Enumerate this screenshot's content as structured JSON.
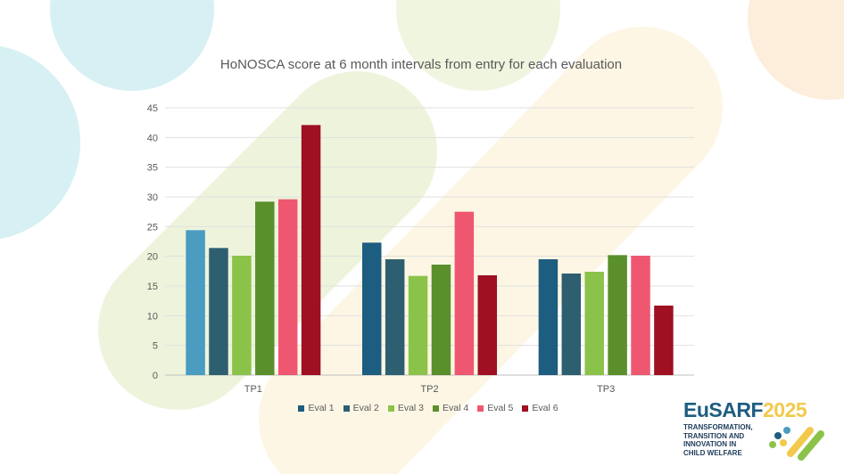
{
  "chart_data": {
    "type": "bar",
    "title": "HoNOSCA score at 6 month intervals from entry for each evaluation",
    "categories": [
      "TP1",
      "TP2",
      "TP3"
    ],
    "series": [
      {
        "name": "Eval 1",
        "values": [
          24.4,
          22.3,
          19.5
        ]
      },
      {
        "name": "Eval 2",
        "values": [
          21.4,
          19.5,
          17.1
        ]
      },
      {
        "name": "Eval 3",
        "values": [
          20.1,
          16.7,
          17.4
        ]
      },
      {
        "name": "Eval 4",
        "values": [
          29.2,
          18.6,
          20.2
        ]
      },
      {
        "name": "Eval 5",
        "values": [
          29.6,
          27.5,
          20.1
        ]
      },
      {
        "name": "Eval 6",
        "values": [
          42.1,
          16.8,
          11.7
        ]
      }
    ],
    "series_colors": [
      "#1d5d80",
      "#2d5f70",
      "#8bc34a",
      "#5a8f2b",
      "#ef5770",
      "#9e1022"
    ],
    "tp1_eval1_color": "#4a9cc0",
    "ylim": [
      0,
      45
    ],
    "yticks": [
      0,
      5,
      10,
      15,
      20,
      25,
      30,
      35,
      40,
      45
    ],
    "grid": true,
    "legend_position": "bottom"
  },
  "logo": {
    "word_part1": "EuSARF",
    "word_part2": "2025",
    "tagline": [
      "TRANSFORMATION,",
      "TRANSITION AND",
      "INNOVATION IN",
      "CHILD WELFARE"
    ]
  }
}
